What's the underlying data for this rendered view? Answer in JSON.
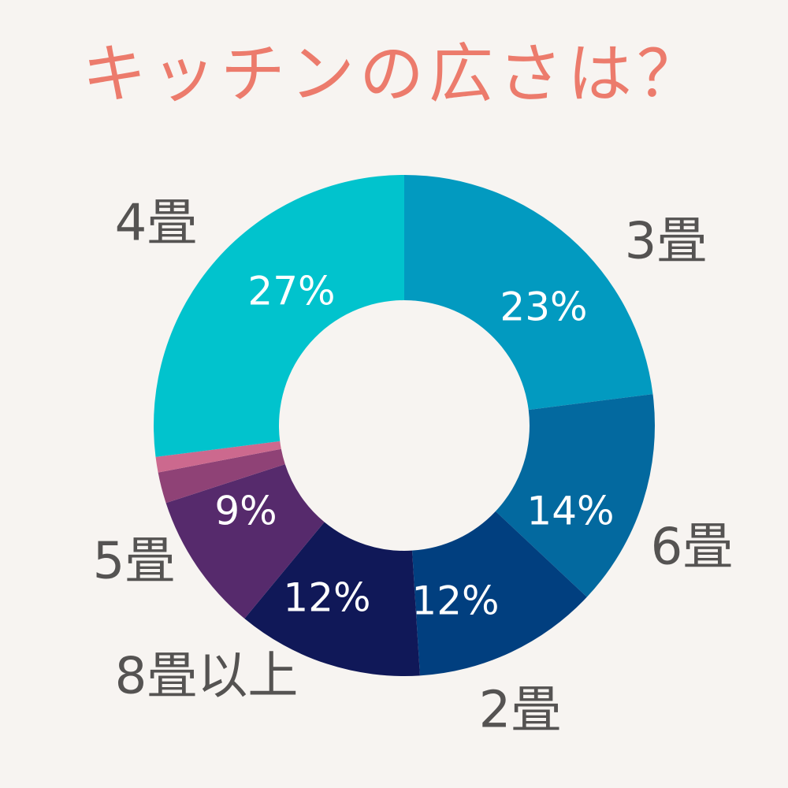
{
  "chart_data": {
    "type": "pie",
    "title": "キッチンの広さは？",
    "inner_radius_ratio": 0.5,
    "slices": [
      {
        "label": "3畳",
        "value": 23,
        "value_label": "23%",
        "color": "#029ac0"
      },
      {
        "label": "6畳",
        "value": 14,
        "value_label": "14%",
        "color": "#03699f"
      },
      {
        "label": "2畳",
        "value": 12,
        "value_label": "12%",
        "color": "#013f7f"
      },
      {
        "label": "8畳以上",
        "value": 12,
        "value_label": "12%",
        "color": "#101858"
      },
      {
        "label": "5畳",
        "value": 9,
        "value_label": "9%",
        "color": "#562a6c"
      },
      {
        "label": "",
        "value": 2,
        "value_label": "",
        "color": "#8f4276"
      },
      {
        "label": "",
        "value": 1,
        "value_label": "",
        "color": "#cc698e"
      },
      {
        "label": "4畳",
        "value": 27,
        "value_label": "27%",
        "color": "#01c3cd"
      }
    ]
  }
}
